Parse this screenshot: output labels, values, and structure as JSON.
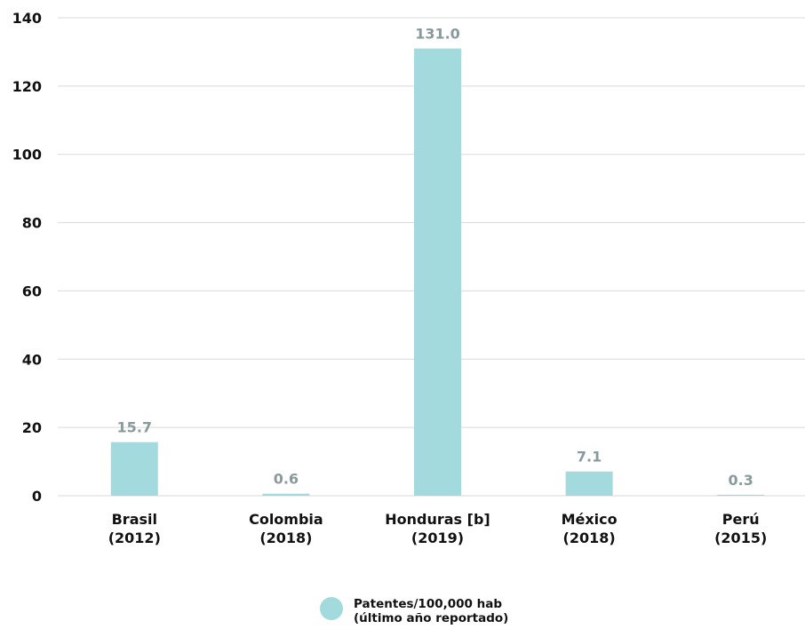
{
  "chart_data": {
    "type": "bar",
    "categories": [
      [
        "Brasil",
        "(2012)"
      ],
      [
        "Colombia",
        "(2018)"
      ],
      [
        "Honduras [b]",
        "(2019)"
      ],
      [
        "México",
        "(2018)"
      ],
      [
        "Perú",
        "(2015)"
      ]
    ],
    "series": [
      {
        "name": "Patentes/100,000 hab (último año reportado)",
        "values": [
          15.7,
          0.6,
          131.0,
          7.1,
          0.3
        ],
        "labels": [
          "15.7",
          "0.6",
          "131.0",
          "7.1",
          "0.3"
        ],
        "color": "#a3dadd"
      }
    ],
    "ylim": [
      0,
      140
    ],
    "yticks": [
      0,
      20,
      40,
      60,
      80,
      100,
      120,
      140
    ],
    "grid": true,
    "legend_position": "bottom-center"
  },
  "legend": {
    "line1": "Patentes/100,000 hab",
    "line2": "(último año reportado)"
  },
  "colors": {
    "bar": "#a3dadd",
    "grid": "#d9d9d9",
    "data_label": "#8a9a9c"
  }
}
